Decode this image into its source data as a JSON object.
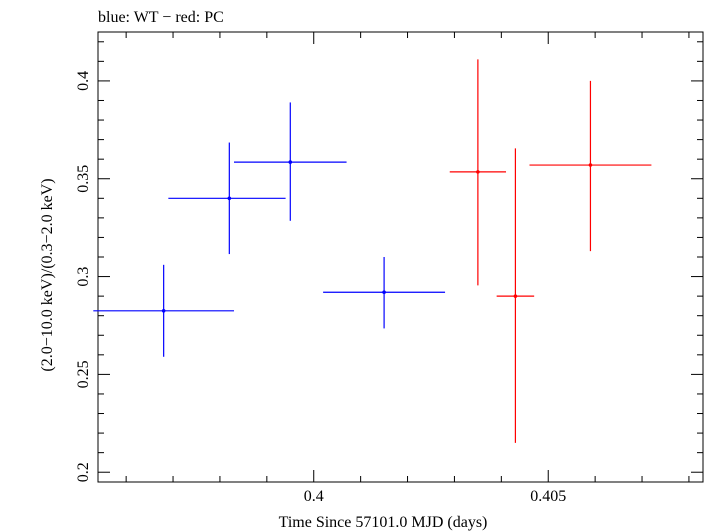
{
  "chart_data": {
    "type": "scatter",
    "title": "blue: WT − red: PC",
    "xlabel": "Time Since 57101.0 MJD (days)",
    "ylabel": "(2.0−10.0 keV)/(0.3−2.0 keV)",
    "xlim": [
      0.3954,
      0.4083
    ],
    "ylim": [
      0.195,
      0.425
    ],
    "x_ticks": [
      {
        "value": 0.4,
        "label": "0.4"
      },
      {
        "value": 0.405,
        "label": "0.405"
      }
    ],
    "y_ticks": [
      {
        "value": 0.2,
        "label": "0.2"
      },
      {
        "value": 0.25,
        "label": "0.25"
      },
      {
        "value": 0.3,
        "label": "0.3"
      },
      {
        "value": 0.35,
        "label": "0.35"
      },
      {
        "value": 0.4,
        "label": "0.4"
      }
    ],
    "grid": false,
    "series": [
      {
        "name": "WT",
        "color": "#0000ff",
        "points": [
          {
            "x": 0.3968,
            "y": 0.2825,
            "xlo": 0.3953,
            "xhi": 0.3983,
            "ylo": 0.259,
            "yhi": 0.306
          },
          {
            "x": 0.3982,
            "y": 0.34,
            "xlo": 0.3969,
            "xhi": 0.3994,
            "ylo": 0.3115,
            "yhi": 0.3685
          },
          {
            "x": 0.3995,
            "y": 0.3585,
            "xlo": 0.3983,
            "xhi": 0.4007,
            "ylo": 0.3285,
            "yhi": 0.389
          },
          {
            "x": 0.4015,
            "y": 0.292,
            "xlo": 0.4002,
            "xhi": 0.4028,
            "ylo": 0.2735,
            "yhi": 0.31
          }
        ]
      },
      {
        "name": "PC",
        "color": "#ff0000",
        "points": [
          {
            "x": 0.4035,
            "y": 0.3535,
            "xlo": 0.4029,
            "xhi": 0.4041,
            "ylo": 0.2955,
            "yhi": 0.411
          },
          {
            "x": 0.4043,
            "y": 0.29,
            "xlo": 0.4039,
            "xhi": 0.4047,
            "ylo": 0.215,
            "yhi": 0.3655
          },
          {
            "x": 0.4059,
            "y": 0.357,
            "xlo": 0.4046,
            "xhi": 0.4072,
            "ylo": 0.313,
            "yhi": 0.4
          }
        ]
      }
    ]
  }
}
